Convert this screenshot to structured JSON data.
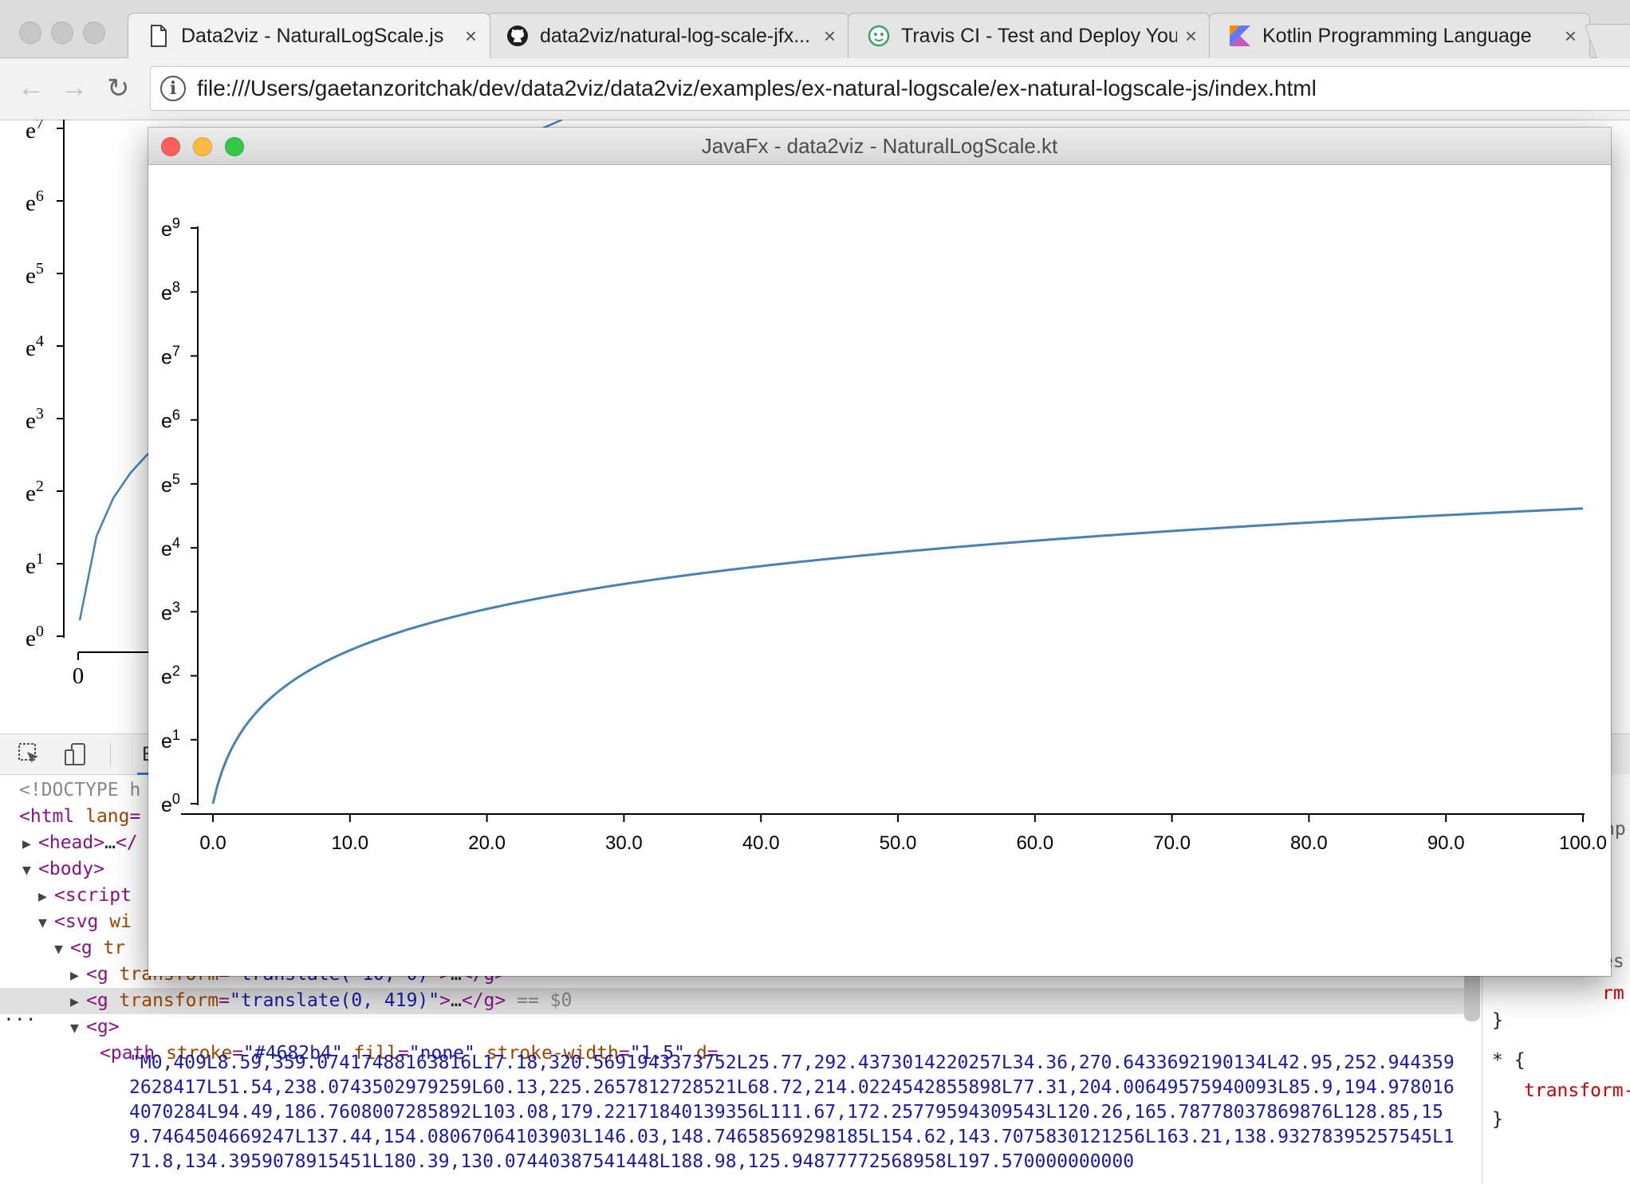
{
  "browser": {
    "tabs": [
      {
        "title": "Data2viz - NaturalLogScale.js",
        "icon": "document-icon",
        "active": true
      },
      {
        "title": "data2viz/natural-log-scale-jfx...",
        "icon": "github-icon",
        "active": false
      },
      {
        "title": "Travis CI - Test and Deploy You",
        "icon": "travis-icon",
        "active": false
      },
      {
        "title": "Kotlin Programming Language",
        "icon": "kotlin-icon",
        "active": false
      }
    ],
    "close_glyph": "×",
    "url": "file:///Users/gaetanzoritchak/dev/data2viz/data2viz/examples/ex-natural-logscale/ex-natural-logscale-js/index.html"
  },
  "page_chart": {
    "y_ticks": [
      "e0",
      "e1",
      "e2",
      "e3",
      "e4",
      "e5",
      "e6",
      "e7"
    ],
    "x_ticks": [
      "0"
    ]
  },
  "devtools": {
    "tab_partial": "E",
    "lines": [
      {
        "indent": 0,
        "tri": "",
        "parts": [
          [
            "muted",
            "<!DOCTYPE h"
          ]
        ]
      },
      {
        "indent": 0,
        "tri": "",
        "parts": [
          [
            "tag",
            "<html "
          ],
          [
            "aname",
            "lang"
          ],
          [
            "tag",
            "="
          ]
        ]
      },
      {
        "indent": 1,
        "tri": "▶",
        "parts": [
          [
            "tag",
            "<head>"
          ],
          [
            "plain",
            "…"
          ],
          [
            "tag",
            "</"
          ]
        ]
      },
      {
        "indent": 1,
        "tri": "▼",
        "parts": [
          [
            "tag",
            "<body>"
          ]
        ]
      },
      {
        "indent": 2,
        "tri": "▶",
        "parts": [
          [
            "tag",
            "<script"
          ]
        ]
      },
      {
        "indent": 2,
        "tri": "▼",
        "parts": [
          [
            "tag",
            "<svg "
          ],
          [
            "aname",
            "wi"
          ]
        ]
      },
      {
        "indent": 3,
        "tri": "▼",
        "parts": [
          [
            "tag",
            "<g "
          ],
          [
            "aname",
            "tr"
          ]
        ]
      },
      {
        "indent": 4,
        "tri": "▶",
        "parts": [
          [
            "tag",
            "<g "
          ],
          [
            "aname",
            "transform"
          ],
          [
            "tag",
            "="
          ],
          [
            "aval",
            "\"translate(-10, 0)\""
          ],
          [
            "tag",
            ">"
          ],
          [
            "plain",
            "…"
          ],
          [
            "tag",
            "</g>"
          ]
        ]
      },
      {
        "indent": 4,
        "tri": "▶",
        "selected": true,
        "parts": [
          [
            "tag",
            "<g "
          ],
          [
            "aname",
            "transform"
          ],
          [
            "tag",
            "="
          ],
          [
            "aval",
            "\"translate(0, 419)\""
          ],
          [
            "tag",
            ">"
          ],
          [
            "plain",
            "…"
          ],
          [
            "tag",
            "</g>"
          ],
          [
            "muted",
            " == $0"
          ]
        ]
      },
      {
        "indent": 4,
        "tri": "▼",
        "parts": [
          [
            "tag",
            "<g>"
          ]
        ]
      },
      {
        "indent": 5,
        "tri": "",
        "parts": [
          [
            "tag",
            "<path "
          ],
          [
            "aname",
            "stroke"
          ],
          [
            "tag",
            "="
          ],
          [
            "aval",
            "\"#4682b4\""
          ],
          [
            "plain",
            " "
          ],
          [
            "aname",
            "fill"
          ],
          [
            "tag",
            "="
          ],
          [
            "aval",
            "\"none\""
          ],
          [
            "plain",
            " "
          ],
          [
            "aname",
            "stroke-width"
          ],
          [
            "tag",
            "="
          ],
          [
            "aval",
            "\"1.5\""
          ],
          [
            "plain",
            " "
          ],
          [
            "aname",
            "d"
          ],
          [
            "tag",
            "="
          ]
        ]
      }
    ],
    "path_d": "\"M0,409L8.59,359.07417488163816L17.18,320.5691943373752L25.77,292.4373014220257L34.36,270.6433692190134L42.95,252.9443592628417L51.54,238.0743502979259L60.13,225.2657812728521L68.72,214.0224542855898L77.31,204.00649575940093L85.9,194.9780164070284L94.49,186.7608007285892L103.08,179.22171840139356L111.67,172.25779594309543L120.26,165.78778037869876L128.85,159.7464504669247L137.44,154.08067064103903L146.03,148.74658569298185L154.62,143.7075830121256L163.21,138.93278395257545L171.8,134.3959078915451L180.39,130.07440387541448L188.98,125.94877772568958L197.570000000000",
    "styles": {
      "frag1": "es",
      "frag2": "np",
      "frag3": "rm",
      "brace_close": "}",
      "rule2": "* {",
      "prop": "transform-"
    },
    "ellipsis": "..."
  },
  "javafx_window": {
    "title": "JavaFx - data2viz - NaturalLogScale.kt",
    "light_colors": [
      "#fc605c",
      "#fdbc40",
      "#34c84a"
    ]
  },
  "chart_data": {
    "type": "line",
    "title": "",
    "xlabel": "",
    "ylabel": "",
    "x_ticks": [
      "0.0",
      "10.0",
      "20.0",
      "30.0",
      "40.0",
      "50.0",
      "60.0",
      "70.0",
      "80.0",
      "90.0",
      "100.0"
    ],
    "y_tick_base": "e",
    "y_tick_exponents": [
      "0",
      "1",
      "2",
      "3",
      "4",
      "5",
      "6",
      "7",
      "8",
      "9"
    ],
    "xlim": [
      0,
      100
    ],
    "ylim_ln": [
      0,
      9
    ],
    "y_scale": "natural log",
    "series": [
      {
        "color": "#4682b4",
        "x": [
          0,
          1,
          2,
          3,
          4,
          5,
          6,
          8,
          10,
          12,
          15,
          20,
          25,
          30,
          40,
          50,
          60,
          70,
          80,
          90,
          100
        ],
        "y": [
          1,
          2,
          3,
          4,
          5,
          6,
          7,
          9,
          11,
          13,
          16,
          21,
          26,
          31,
          41,
          51,
          61,
          71,
          81,
          91,
          101
        ]
      }
    ]
  }
}
